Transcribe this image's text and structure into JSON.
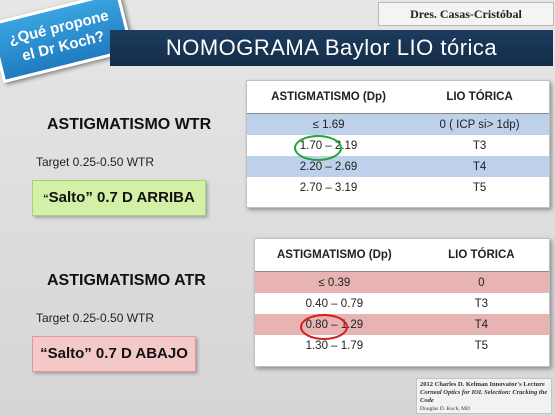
{
  "badge": {
    "line1": "¿Qué propone",
    "line2": "el Dr Koch?"
  },
  "author": "Dres. Casas-Cristóbal",
  "title": "NOMOGRAMA Baylor LIO tórica",
  "wtr": {
    "heading": "ASTIGMATISMO WTR",
    "target": "Target 0.25-0.50 WTR",
    "salto_open": "“",
    "salto_text": "Salto” 0.7 D ARRIBA",
    "table": {
      "headers": [
        "ASTIGMATISMO (Dp)",
        "LIO TÓRICA"
      ],
      "rows": [
        [
          "≤ 1.69",
          "0 ( ICP si> 1dp)"
        ],
        [
          "1.70 – 2.19",
          "T3"
        ],
        [
          "2.20 – 2.69",
          "T4"
        ],
        [
          "2.70 – 3.19",
          "T5"
        ]
      ]
    }
  },
  "atr": {
    "heading": "ASTIGMATISMO ATR",
    "target": "Target 0.25-0.50 WTR",
    "salto_text": "“Salto” 0.7 D ABAJO",
    "table": {
      "headers": [
        "ASTIGMATISMO (Dp)",
        "LIO TÓRICA"
      ],
      "rows": [
        [
          "≤ 0.39",
          "0"
        ],
        [
          "0.40 – 0.79",
          "T3"
        ],
        [
          "0.80 – 1.29",
          "T4"
        ],
        [
          "1.30 – 1.79",
          "T5"
        ]
      ]
    }
  },
  "citation": {
    "line1": "2012 Charles D. Kelman Innovator's Lecture",
    "line2": "Corneal Optics for IOL Selection: Cracking the Code",
    "line3": "Douglas D. Koch, MD"
  },
  "colors": {
    "title_bar": "#1d3c5e",
    "badge": "#1f7cc0",
    "wtr_row": "#bdd1ea",
    "atr_row": "#e8b3b3",
    "salto_up": "#d4f0a6",
    "salto_down": "#f4c8c8",
    "circle_green": "#22a33b",
    "circle_red": "#d21f1f"
  }
}
